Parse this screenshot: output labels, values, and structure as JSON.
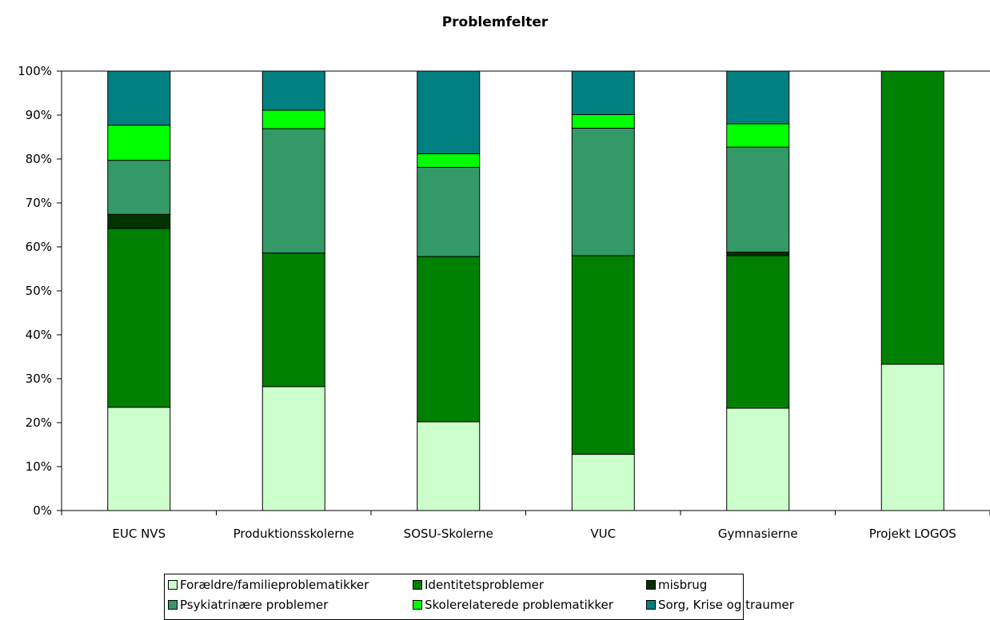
{
  "chart_data": {
    "type": "bar",
    "stacked": true,
    "title": "Problemfelter",
    "categories": [
      "EUC NVS",
      "Produktionsskolerne",
      "SOSU-Skolerne",
      "VUC",
      "Gymnasierne",
      "Projekt LOGOS"
    ],
    "y_ticks": [
      "0%",
      "10%",
      "20%",
      "30%",
      "40%",
      "50%",
      "60%",
      "70%",
      "80%",
      "90%",
      "100%"
    ],
    "ylim": [
      0,
      100
    ],
    "legend_position": "bottom",
    "series": [
      {
        "name": "Forældre/familieproblematikker",
        "color": "#ccffcc",
        "values": [
          23.5,
          28.2,
          20.2,
          12.8,
          23.3,
          33.3
        ]
      },
      {
        "name": "Identitetsproblemer",
        "color": "#008000",
        "values": [
          40.7,
          30.4,
          37.6,
          45.2,
          34.7,
          66.7
        ]
      },
      {
        "name": "misbrug",
        "color": "#003300",
        "values": [
          3.2,
          0.0,
          0.0,
          0.0,
          0.8,
          0.0
        ]
      },
      {
        "name": "Psykiatrinære problemer",
        "color": "#339966",
        "values": [
          12.3,
          28.3,
          20.3,
          29.0,
          23.9,
          0.0
        ]
      },
      {
        "name": "Skolerelaterede problematikker",
        "color": "#00ff00",
        "values": [
          8.0,
          4.2,
          3.1,
          3.1,
          5.3,
          0.0
        ]
      },
      {
        "name": "Sorg, Krise og traumer",
        "color": "#008080",
        "values": [
          12.3,
          8.9,
          18.8,
          9.9,
          12.0,
          0.0
        ]
      }
    ]
  }
}
